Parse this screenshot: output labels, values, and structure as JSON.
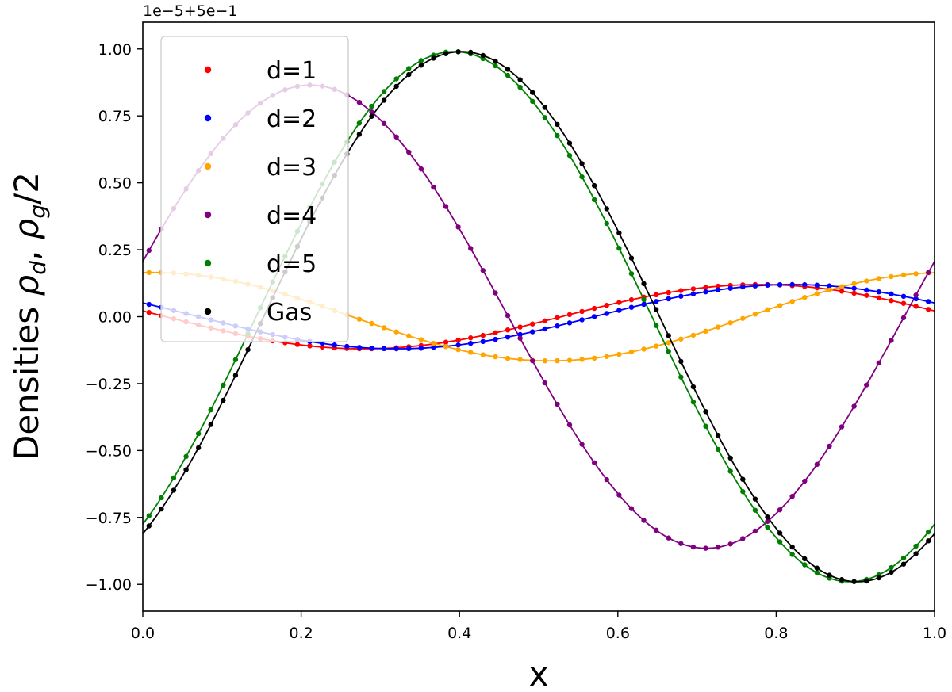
{
  "chart_data": {
    "type": "line",
    "title": "",
    "xlabel": "x",
    "ylabel": "Densities ρ_d, ρ_g/2",
    "ylabel_parts": {
      "prefix": "Densities ",
      "rho1": "ρ",
      "sub1": "d",
      "sep": ", ",
      "rho2": "ρ",
      "sub2": "g",
      "suffix": "/2"
    },
    "offset_text": "1e−5+5e−1",
    "xlim": [
      0.0,
      1.0
    ],
    "ylim": [
      -1.1,
      1.1
    ],
    "xticks": [
      0.0,
      0.2,
      0.4,
      0.6,
      0.8,
      1.0
    ],
    "xtick_labels": [
      "0.0",
      "0.2",
      "0.4",
      "0.6",
      "0.8",
      "1.0"
    ],
    "yticks": [
      -1.0,
      -0.75,
      -0.5,
      -0.25,
      0.0,
      0.25,
      0.5,
      0.75,
      1.0
    ],
    "ytick_labels": [
      "−1.00",
      "−0.75",
      "−0.50",
      "−0.25",
      "0.00",
      "0.25",
      "0.50",
      "0.75",
      "1.00"
    ],
    "grid": false,
    "legend_position": "upper-left",
    "marker_style": "dots (numerical) with solid line (analytic)",
    "n_points": 64,
    "series": [
      {
        "name": "d=1",
        "color": "#ff0000",
        "amplitude": 0.12,
        "phase": 1.39
      },
      {
        "name": "d=2",
        "color": "#0000ff",
        "amplitude": 0.12,
        "phase": 1.13
      },
      {
        "name": "d=3",
        "color": "#ffa500",
        "amplitude": 0.165,
        "phase": -0.09
      },
      {
        "name": "d=4",
        "color": "#800080",
        "amplitude": 0.865,
        "phase": -1.33
      },
      {
        "name": "d=5",
        "color": "#008000",
        "amplitude": 0.99,
        "phase": -2.47
      },
      {
        "name": "Gas",
        "color": "#000000",
        "amplitude": 0.99,
        "phase": -2.53
      }
    ]
  }
}
